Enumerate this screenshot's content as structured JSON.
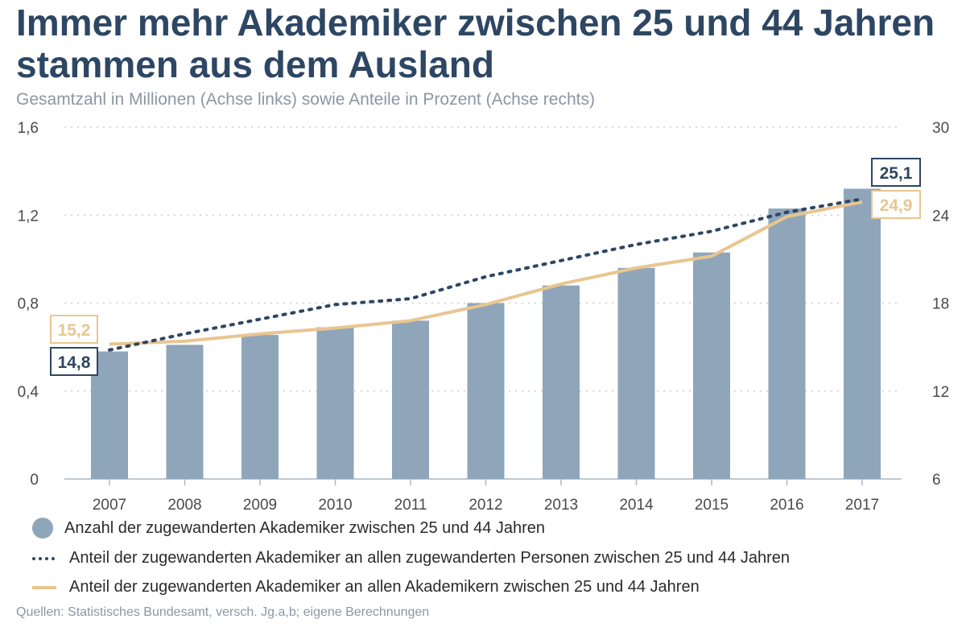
{
  "title": "Immer mehr Akademiker zwischen 25 und 44 Jahren stammen aus dem Ausland",
  "subtitle": "Gesamtzahl in Millionen (Achse links) sowie Anteile in Prozent (Achse rechts)",
  "source": "Quellen: Statistisches Bundesamt, versch. Jg.a,b; eigene Berechnungen",
  "colors": {
    "bar": "#8fa5ba",
    "dotted": "#2d4663",
    "gold": "#e8c690",
    "grid": "#cfcfcf",
    "axis_text": "#4a4a4a"
  },
  "legend": [
    {
      "label": "Anzahl der zugewanderten Akademiker zwischen 25 und 44 Jahren",
      "swatch": "dot"
    },
    {
      "label": "Anteil der zugewanderten Akademiker an allen zugewanderten Personen zwischen 25 und 44 Jahren",
      "swatch": "dotted-line"
    },
    {
      "label": "Anteil der zugewanderten Akademiker an allen Akademikern zwischen 25 und 44 Jahren",
      "swatch": "solid-line"
    }
  ],
  "chart_data": {
    "type": "bar",
    "categories": [
      "2007",
      "2008",
      "2009",
      "2010",
      "2011",
      "2012",
      "2013",
      "2014",
      "2015",
      "2016",
      "2017"
    ],
    "y_left": {
      "ticks": [
        "0",
        "0,4",
        "0,8",
        "1,2",
        "1,6"
      ],
      "ylim": [
        0,
        1.6
      ]
    },
    "y_right": {
      "ticks": [
        "6",
        "12",
        "18",
        "24",
        "30"
      ],
      "ylim": [
        6,
        30
      ]
    },
    "series": [
      {
        "name": "Anzahl der zugewanderten Akademiker zwischen 25 und 44 Jahren",
        "type": "bar",
        "axis": "left",
        "values": [
          0.58,
          0.61,
          0.655,
          0.69,
          0.72,
          0.8,
          0.88,
          0.96,
          1.03,
          1.23,
          1.32
        ]
      },
      {
        "name": "Anteil der zugewanderten Akademiker an allen zugewanderten Personen zwischen 25 und 44 Jahren",
        "type": "line",
        "style": "dotted",
        "axis": "right",
        "values": [
          14.8,
          15.9,
          16.9,
          17.9,
          18.3,
          19.8,
          20.9,
          22.0,
          22.9,
          24.2,
          25.1
        ]
      },
      {
        "name": "Anteil der zugewanderten Akademiker an allen Akademikern zwischen 25 und 44 Jahren",
        "type": "line",
        "style": "solid",
        "axis": "right",
        "values": [
          15.2,
          15.4,
          15.9,
          16.3,
          16.8,
          17.9,
          19.3,
          20.4,
          21.2,
          23.9,
          24.9
        ]
      }
    ],
    "annotations": [
      {
        "text": "15,2",
        "series": 2,
        "index": 0
      },
      {
        "text": "14,8",
        "series": 1,
        "index": 0
      },
      {
        "text": "25,1",
        "series": 1,
        "index": 10
      },
      {
        "text": "24,9",
        "series": 2,
        "index": 10
      }
    ]
  }
}
